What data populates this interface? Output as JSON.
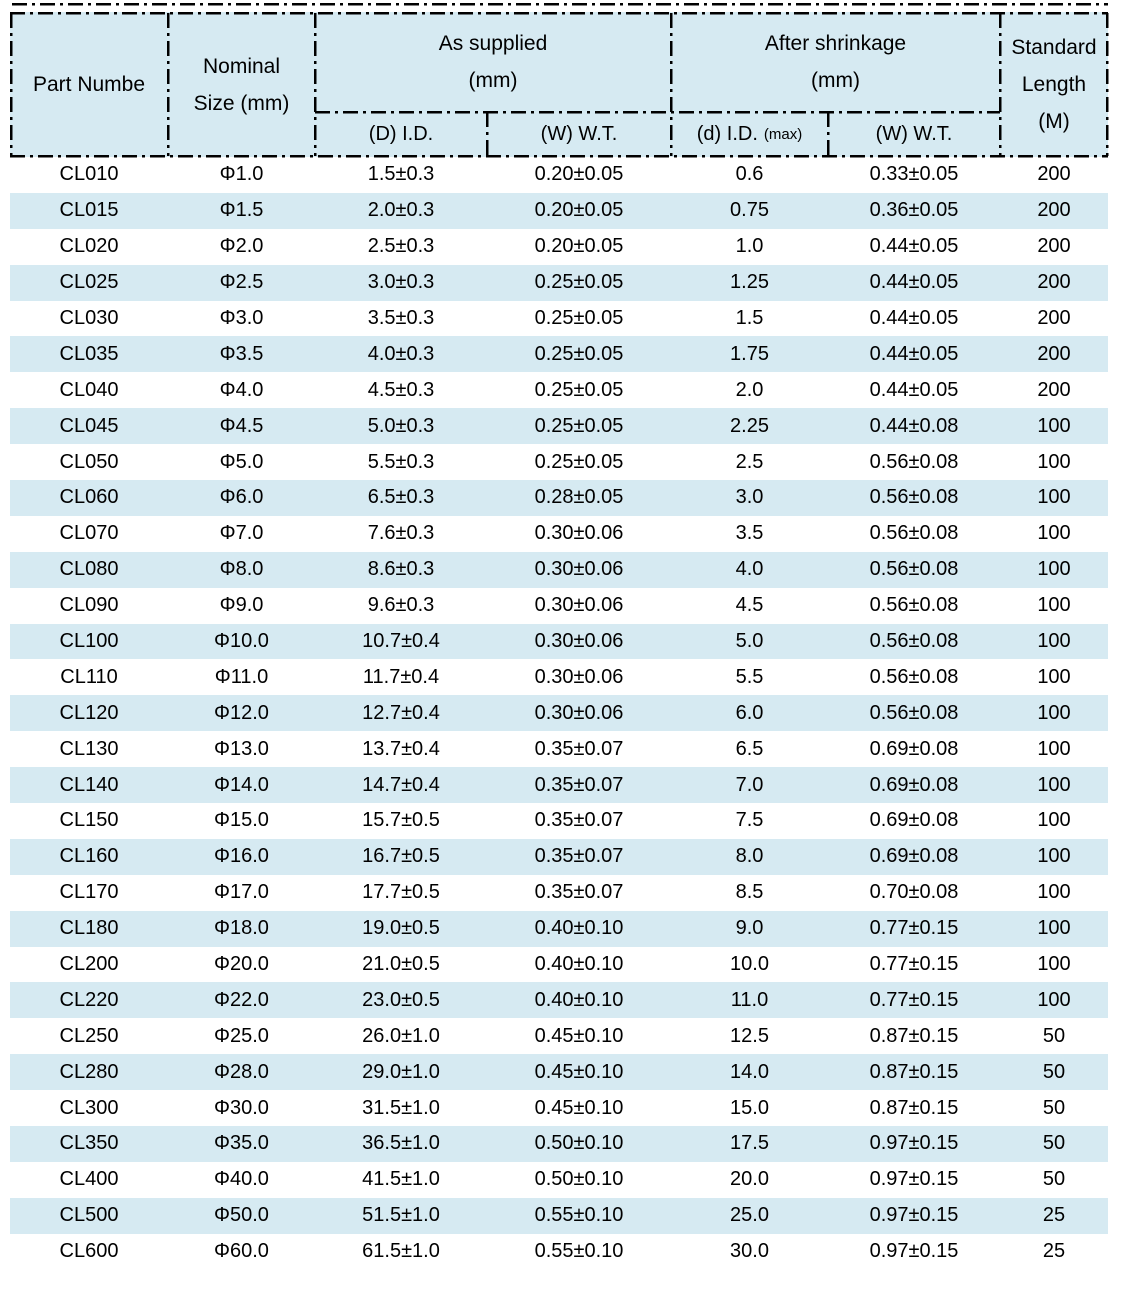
{
  "chart_data": {
    "type": "table",
    "header": {
      "part": "Part Numbe",
      "nominal_lines": [
        "Nominal",
        "Size (mm)"
      ],
      "as_supplied_lines": [
        "As supplied",
        "(mm)"
      ],
      "after_shrinkage_lines": [
        "After shrinkage",
        "(mm)"
      ],
      "standard_length_lines": [
        "Standard",
        "Length",
        "(M)"
      ],
      "sub_supplied_id": "(D) I.D.",
      "sub_supplied_wt": "(W) W.T.",
      "sub_shrink_id": "(d) I.D.",
      "sub_shrink_id_max": "(max)",
      "sub_shrink_wt": "(W) W.T."
    },
    "column_groups": [
      "Part Numbe",
      "Nominal Size (mm)",
      "As supplied (mm)",
      "After shrinkage (mm)",
      "Standard Length (M)"
    ],
    "sub_columns": [
      "(D) I.D.",
      "(W) W.T.",
      "(d) I.D. (max)",
      "(W) W.T."
    ],
    "rows": [
      [
        "CL010",
        "Φ1.0",
        "1.5±0.3",
        "0.20±0.05",
        "0.6",
        "0.33±0.05",
        "200"
      ],
      [
        "CL015",
        "Φ1.5",
        "2.0±0.3",
        "0.20±0.05",
        "0.75",
        "0.36±0.05",
        "200"
      ],
      [
        "CL020",
        "Φ2.0",
        "2.5±0.3",
        "0.20±0.05",
        "1.0",
        "0.44±0.05",
        "200"
      ],
      [
        "CL025",
        "Φ2.5",
        "3.0±0.3",
        "0.25±0.05",
        "1.25",
        "0.44±0.05",
        "200"
      ],
      [
        "CL030",
        "Φ3.0",
        "3.5±0.3",
        "0.25±0.05",
        "1.5",
        "0.44±0.05",
        "200"
      ],
      [
        "CL035",
        "Φ3.5",
        "4.0±0.3",
        "0.25±0.05",
        "1.75",
        "0.44±0.05",
        "200"
      ],
      [
        "CL040",
        "Φ4.0",
        "4.5±0.3",
        "0.25±0.05",
        "2.0",
        "0.44±0.05",
        "200"
      ],
      [
        "CL045",
        "Φ4.5",
        "5.0±0.3",
        "0.25±0.05",
        "2.25",
        "0.44±0.08",
        "100"
      ],
      [
        "CL050",
        "Φ5.0",
        "5.5±0.3",
        "0.25±0.05",
        "2.5",
        "0.56±0.08",
        "100"
      ],
      [
        "CL060",
        "Φ6.0",
        "6.5±0.3",
        "0.28±0.05",
        "3.0",
        "0.56±0.08",
        "100"
      ],
      [
        "CL070",
        "Φ7.0",
        "7.6±0.3",
        "0.30±0.06",
        "3.5",
        "0.56±0.08",
        "100"
      ],
      [
        "CL080",
        "Φ8.0",
        "8.6±0.3",
        "0.30±0.06",
        "4.0",
        "0.56±0.08",
        "100"
      ],
      [
        "CL090",
        "Φ9.0",
        "9.6±0.3",
        "0.30±0.06",
        "4.5",
        "0.56±0.08",
        "100"
      ],
      [
        "CL100",
        "Φ10.0",
        "10.7±0.4",
        "0.30±0.06",
        "5.0",
        "0.56±0.08",
        "100"
      ],
      [
        "CL110",
        "Φ11.0",
        "11.7±0.4",
        "0.30±0.06",
        "5.5",
        "0.56±0.08",
        "100"
      ],
      [
        "CL120",
        "Φ12.0",
        "12.7±0.4",
        "0.30±0.06",
        "6.0",
        "0.56±0.08",
        "100"
      ],
      [
        "CL130",
        "Φ13.0",
        "13.7±0.4",
        "0.35±0.07",
        "6.5",
        "0.69±0.08",
        "100"
      ],
      [
        "CL140",
        "Φ14.0",
        "14.7±0.4",
        "0.35±0.07",
        "7.0",
        "0.69±0.08",
        "100"
      ],
      [
        "CL150",
        "Φ15.0",
        "15.7±0.5",
        "0.35±0.07",
        "7.5",
        "0.69±0.08",
        "100"
      ],
      [
        "CL160",
        "Φ16.0",
        "16.7±0.5",
        "0.35±0.07",
        "8.0",
        "0.69±0.08",
        "100"
      ],
      [
        "CL170",
        "Φ17.0",
        "17.7±0.5",
        "0.35±0.07",
        "8.5",
        "0.70±0.08",
        "100"
      ],
      [
        "CL180",
        "Φ18.0",
        "19.0±0.5",
        "0.40±0.10",
        "9.0",
        "0.77±0.15",
        "100"
      ],
      [
        "CL200",
        "Φ20.0",
        "21.0±0.5",
        "0.40±0.10",
        "10.0",
        "0.77±0.15",
        "100"
      ],
      [
        "CL220",
        "Φ22.0",
        "23.0±0.5",
        "0.40±0.10",
        "11.0",
        "0.77±0.15",
        "100"
      ],
      [
        "CL250",
        "Φ25.0",
        "26.0±1.0",
        "0.45±0.10",
        "12.5",
        "0.87±0.15",
        "50"
      ],
      [
        "CL280",
        "Φ28.0",
        "29.0±1.0",
        "0.45±0.10",
        "14.0",
        "0.87±0.15",
        "50"
      ],
      [
        "CL300",
        "Φ30.0",
        "31.5±1.0",
        "0.45±0.10",
        "15.0",
        "0.87±0.15",
        "50"
      ],
      [
        "CL350",
        "Φ35.0",
        "36.5±1.0",
        "0.50±0.10",
        "17.5",
        "0.97±0.15",
        "50"
      ],
      [
        "CL400",
        "Φ40.0",
        "41.5±1.0",
        "0.50±0.10",
        "20.0",
        "0.97±0.15",
        "50"
      ],
      [
        "CL500",
        "Φ50.0",
        "51.5±1.0",
        "0.55±0.10",
        "25.0",
        "0.97±0.15",
        "25"
      ],
      [
        "CL600",
        "Φ60.0",
        "61.5±1.0",
        "0.55±0.10",
        "30.0",
        "0.97±0.15",
        "25"
      ]
    ]
  },
  "colors": {
    "header_bg": "#d6eaf2",
    "stripe_bg": "#d6eaf2",
    "border_color": "#000000",
    "text_color": "#000000",
    "page_bg": "#ffffff"
  }
}
